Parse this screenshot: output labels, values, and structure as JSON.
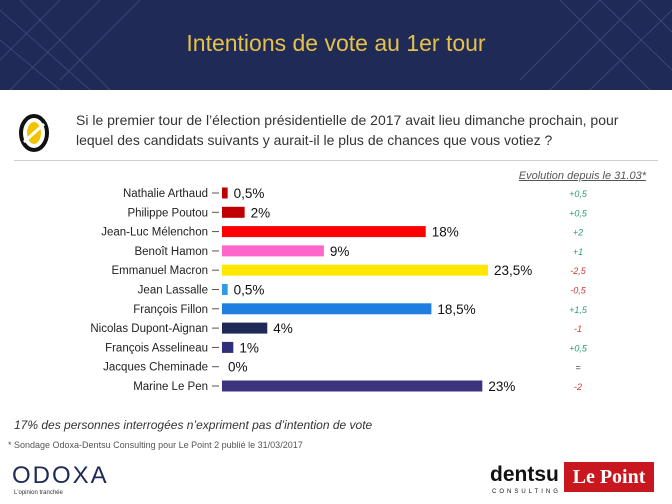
{
  "header": {
    "title": "Intentions de vote au 1er tour"
  },
  "question": "Si le premier tour de l’élection présidentielle de 2017 avait lieu dimanche prochain, pour lequel des candidats suivants y aurait-il le plus de chances que vous votiez ?",
  "evolution_header": "Evolution depuis le 31.03*",
  "chart_data": {
    "type": "bar",
    "orientation": "horizontal",
    "categories": [
      "Nathalie Arthaud",
      "Philippe Poutou",
      "Jean-Luc Mélenchon",
      "Benoît Hamon",
      "Emmanuel Macron",
      "Jean Lassalle",
      "François Fillon",
      "Nicolas Dupont-Aignan",
      "François Asselineau",
      "Jacques Cheminade",
      "Marine Le Pen"
    ],
    "values": [
      0.5,
      2,
      18,
      9,
      23.5,
      0.5,
      18.5,
      4,
      1,
      0,
      23
    ],
    "value_labels": [
      "0,5%",
      "2%",
      "18%",
      "9%",
      "23,5%",
      "0,5%",
      "18,5%",
      "4%",
      "1%",
      "0%",
      "23%"
    ],
    "colors": [
      "#c00000",
      "#c00000",
      "#ff0000",
      "#ff66cc",
      "#ffe600",
      "#2e9be6",
      "#1f7fe0",
      "#1f2a57",
      "#2f2f7a",
      "#1f2a57",
      "#3d3480"
    ],
    "evolution": [
      "+0,5",
      "+0,5",
      "+2",
      "+1",
      "-2,5",
      "-0,5",
      "+1,5",
      "-1",
      "+0,5",
      "=",
      "-2"
    ],
    "evolution_colors": [
      "#2e9e6e",
      "#2e9e6e",
      "#2e9e6e",
      "#2e9e6e",
      "#d03a3a",
      "#d03a3a",
      "#2e9e6e",
      "#d03a3a",
      "#2e9e6e",
      "#333333",
      "#d03a3a"
    ],
    "xlim": [
      0,
      23.5
    ]
  },
  "footnote": "17% des personnes interrogées n’expriment pas d’intention de vote",
  "source": "* Sondage Odoxa-Dentsu Consulting pour Le Point 2 publié le 31/03/2017",
  "logos": {
    "odoxa": "ODOXA",
    "odoxa_tagline": "L'opinion tranchée",
    "dentsu": "dentsu",
    "dentsu_sub": "CONSULTING",
    "lepoint": "Le Point"
  }
}
